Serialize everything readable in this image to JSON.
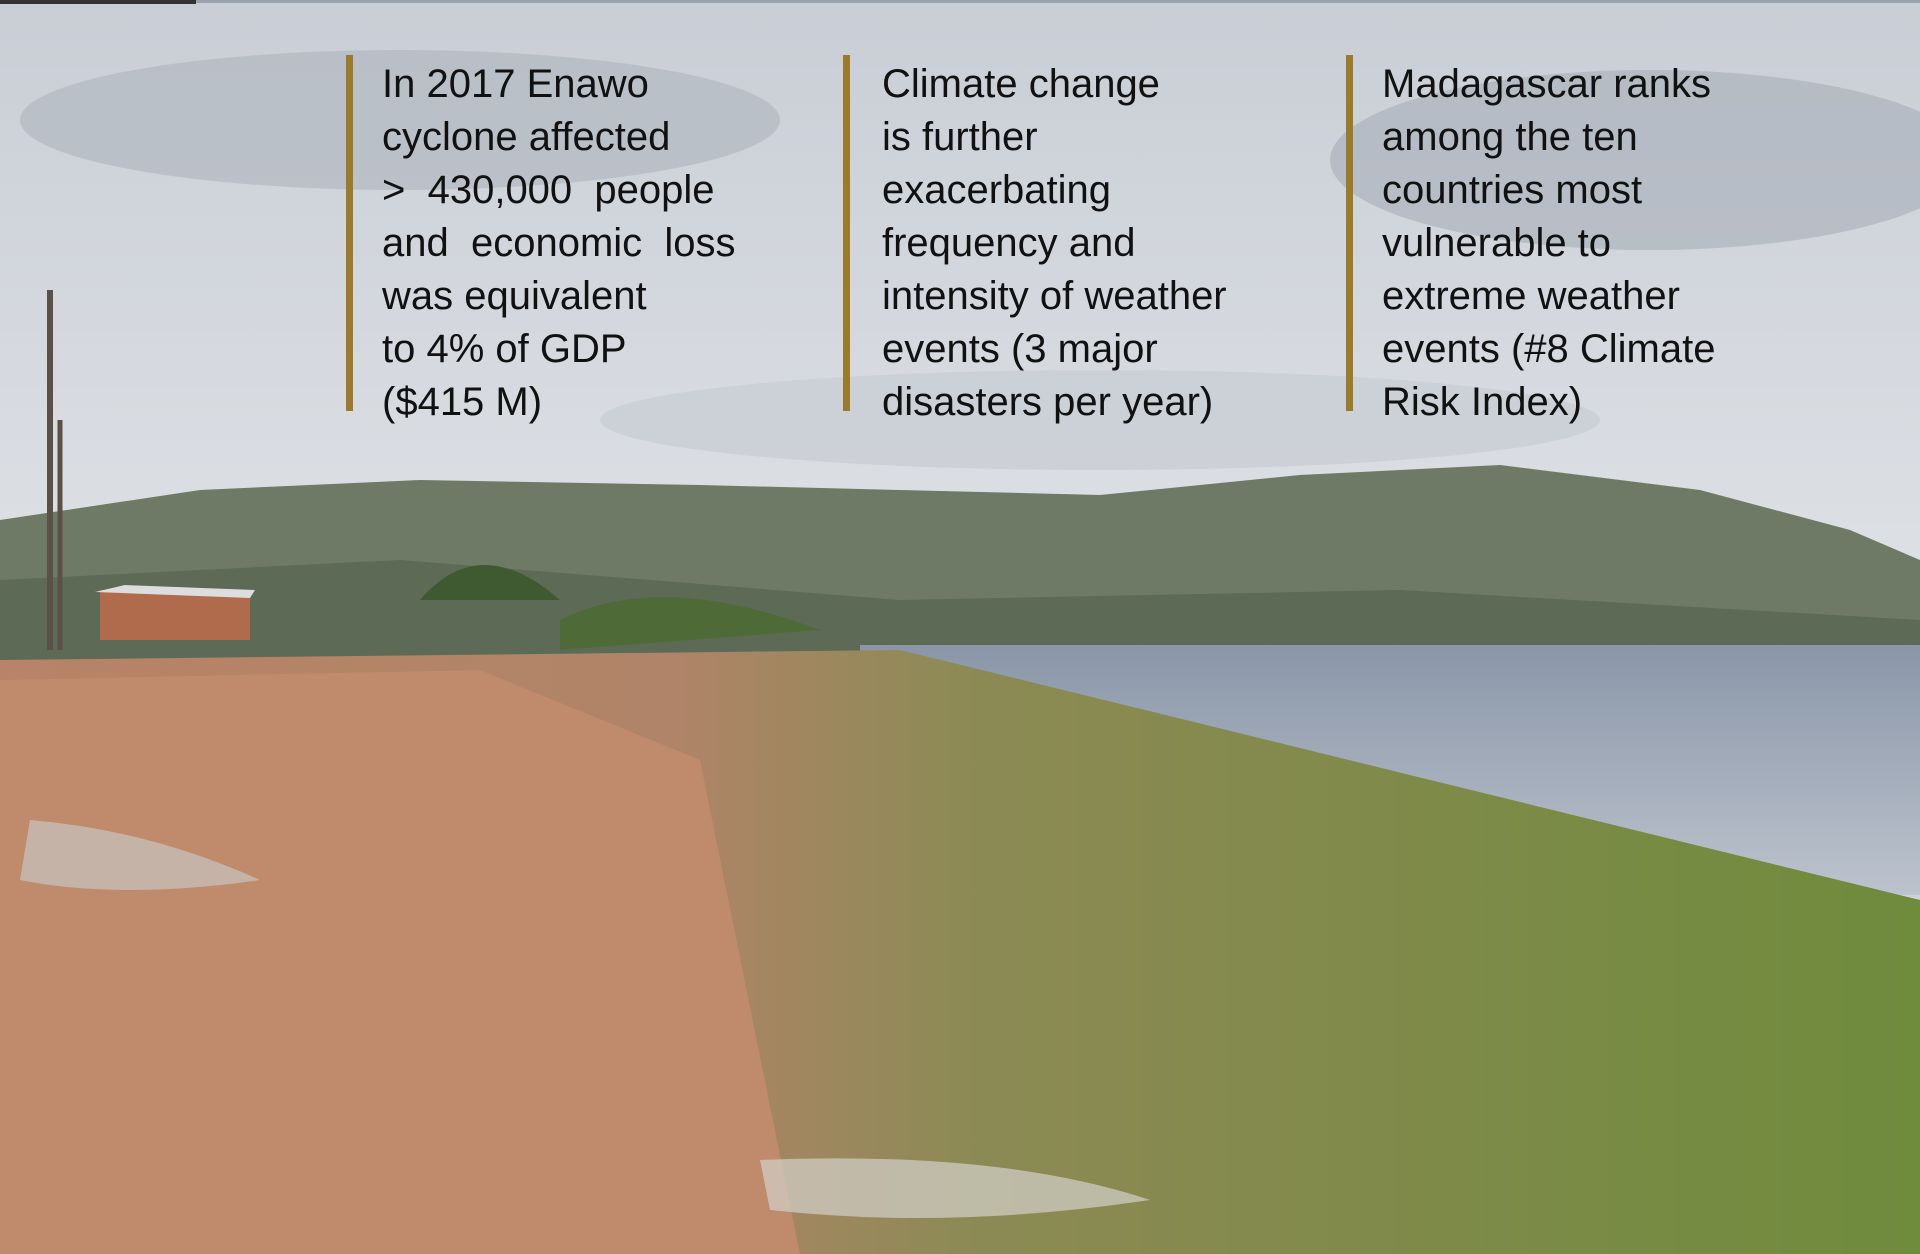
{
  "blocks": [
    {
      "lines": [
        "In 2017 Enawo",
        "cyclone affected",
        ">  430,000  people",
        "and  economic  loss",
        "was equivalent",
        "to 4% of GDP",
        "($415 M)"
      ]
    },
    {
      "lines": [
        "Climate change",
        "is further",
        "exacerbating",
        "frequency and",
        "intensity of weather",
        "events (3 major",
        "disasters per year)"
      ]
    },
    {
      "lines": [
        "Madagascar ranks",
        "among the ten",
        "countries most",
        "vulnerable to",
        "extreme weather",
        "events (#8 Climate",
        "Risk Index)"
      ]
    }
  ]
}
